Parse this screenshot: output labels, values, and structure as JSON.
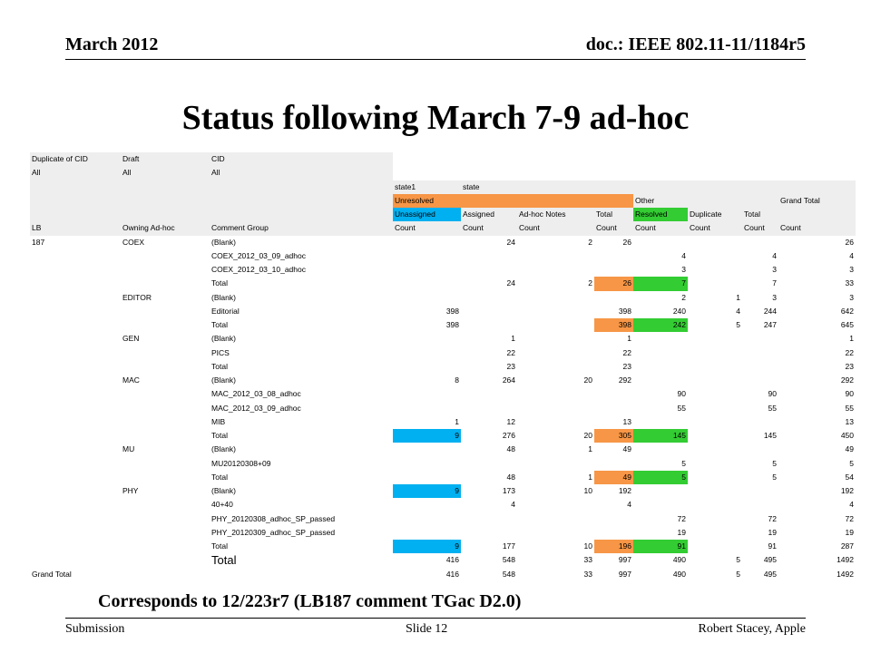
{
  "header": {
    "date": "March 2012",
    "doc": "doc.: IEEE 802.11-11/1184r5"
  },
  "title": "Status following March 7-9 ad-hoc",
  "table": {
    "rows": [
      [
        "Duplicate of CID",
        "Draft",
        "CID",
        null,
        null,
        null,
        null,
        null,
        null,
        null,
        null
      ],
      [
        "All",
        "All",
        "All",
        null,
        null,
        null,
        null,
        null,
        null,
        null,
        null
      ],
      [
        null,
        null,
        null,
        "state1",
        "state",
        null,
        null,
        null,
        null,
        null,
        null
      ],
      [
        null,
        null,
        null,
        {
          "value": "Unresolved",
          "color": "#f79646"
        },
        null,
        null,
        null,
        "Other",
        null,
        null,
        "Grand Total"
      ],
      [
        null,
        null,
        null,
        {
          "value": "Unassigned",
          "color": "#00b0f0"
        },
        "Assigned",
        "Ad-hoc Notes",
        "Total",
        {
          "value": "Resolved",
          "color": "#33cc33"
        },
        "Duplicate",
        "Total",
        null
      ],
      [
        "LB",
        "Owning Ad-hoc",
        "Comment Group",
        "Count",
        "Count",
        "Count",
        "Count",
        "Count",
        "Count",
        "Count",
        "Count"
      ],
      [
        187,
        "COEX",
        "(Blank)",
        null,
        24,
        2,
        26,
        null,
        null,
        null,
        26
      ],
      [
        null,
        null,
        "COEX_2012_03_09_adhoc",
        null,
        null,
        null,
        null,
        4,
        null,
        4,
        4
      ],
      [
        null,
        null,
        "COEX_2012_03_10_adhoc",
        null,
        null,
        null,
        null,
        3,
        null,
        3,
        3
      ],
      [
        null,
        null,
        "Total",
        null,
        24,
        2,
        {
          "value": 26,
          "color": "#f79646"
        },
        {
          "value": 7,
          "color": "#33cc33"
        },
        null,
        7,
        33
      ],
      [
        null,
        "EDITOR",
        "(Blank)",
        null,
        null,
        null,
        null,
        2,
        1,
        3,
        3
      ],
      [
        null,
        null,
        "Editorial",
        398,
        null,
        null,
        398,
        240,
        4,
        244,
        642
      ],
      [
        null,
        null,
        "Total",
        398,
        null,
        null,
        {
          "value": 398,
          "color": "#f79646"
        },
        {
          "value": 242,
          "color": "#33cc33"
        },
        5,
        247,
        645
      ],
      [
        null,
        "GEN",
        "(Blank)",
        null,
        1,
        null,
        1,
        null,
        null,
        null,
        1
      ],
      [
        null,
        null,
        "PICS",
        null,
        22,
        null,
        22,
        null,
        null,
        null,
        22
      ],
      [
        null,
        null,
        "Total",
        null,
        23,
        null,
        23,
        null,
        null,
        null,
        23
      ],
      [
        null,
        "MAC",
        "(Blank)",
        8,
        264,
        20,
        292,
        null,
        null,
        null,
        292
      ],
      [
        null,
        null,
        "MAC_2012_03_08_adhoc",
        null,
        null,
        null,
        null,
        90,
        null,
        90,
        90
      ],
      [
        null,
        null,
        "MAC_2012_03_09_adhoc",
        null,
        null,
        null,
        null,
        55,
        null,
        55,
        55
      ],
      [
        null,
        null,
        "MIB",
        1,
        12,
        null,
        13,
        null,
        null,
        null,
        13
      ],
      [
        null,
        null,
        "Total",
        {
          "value": 9,
          "color": "#00b0f0"
        },
        276,
        20,
        {
          "value": 305,
          "color": "#f79646"
        },
        {
          "value": 145,
          "color": "#33cc33"
        },
        null,
        145,
        450
      ],
      [
        null,
        "MU",
        "(Blank)",
        null,
        48,
        1,
        49,
        null,
        null,
        null,
        49
      ],
      [
        null,
        null,
        "MU20120308+09",
        null,
        null,
        null,
        null,
        5,
        null,
        5,
        5
      ],
      [
        null,
        null,
        "Total",
        null,
        48,
        1,
        {
          "value": 49,
          "color": "#f79646"
        },
        {
          "value": 5,
          "color": "#33cc33"
        },
        null,
        5,
        54
      ],
      [
        null,
        "PHY",
        "(Blank)",
        {
          "value": 9,
          "color": "#00b0f0"
        },
        173,
        10,
        192,
        null,
        null,
        null,
        192
      ],
      [
        null,
        null,
        "40+40",
        null,
        4,
        null,
        4,
        null,
        null,
        null,
        4
      ],
      [
        null,
        null,
        "PHY_20120308_adhoc_SP_passed",
        null,
        null,
        null,
        null,
        72,
        null,
        72,
        72
      ],
      [
        null,
        null,
        "PHY_20120309_adhoc_SP_passed",
        null,
        null,
        null,
        null,
        19,
        null,
        19,
        19
      ],
      [
        null,
        null,
        "Total",
        {
          "value": 9,
          "color": "#00b0f0"
        },
        177,
        10,
        {
          "value": 196,
          "color": "#f79646"
        },
        {
          "value": 91,
          "color": "#33cc33"
        },
        null,
        91,
        287
      ],
      [
        null,
        null,
        "Total",
        416,
        548,
        33,
        997,
        490,
        5,
        495,
        1492
      ],
      [
        "Grand Total",
        null,
        null,
        416,
        548,
        33,
        997,
        490,
        5,
        495,
        1492
      ]
    ]
  },
  "caption": "Corresponds to 12/223r7 (LB187 comment TGac D2.0)",
  "footer": {
    "left": "Submission",
    "center": "Slide 12",
    "right": "Robert Stacey, Apple"
  }
}
